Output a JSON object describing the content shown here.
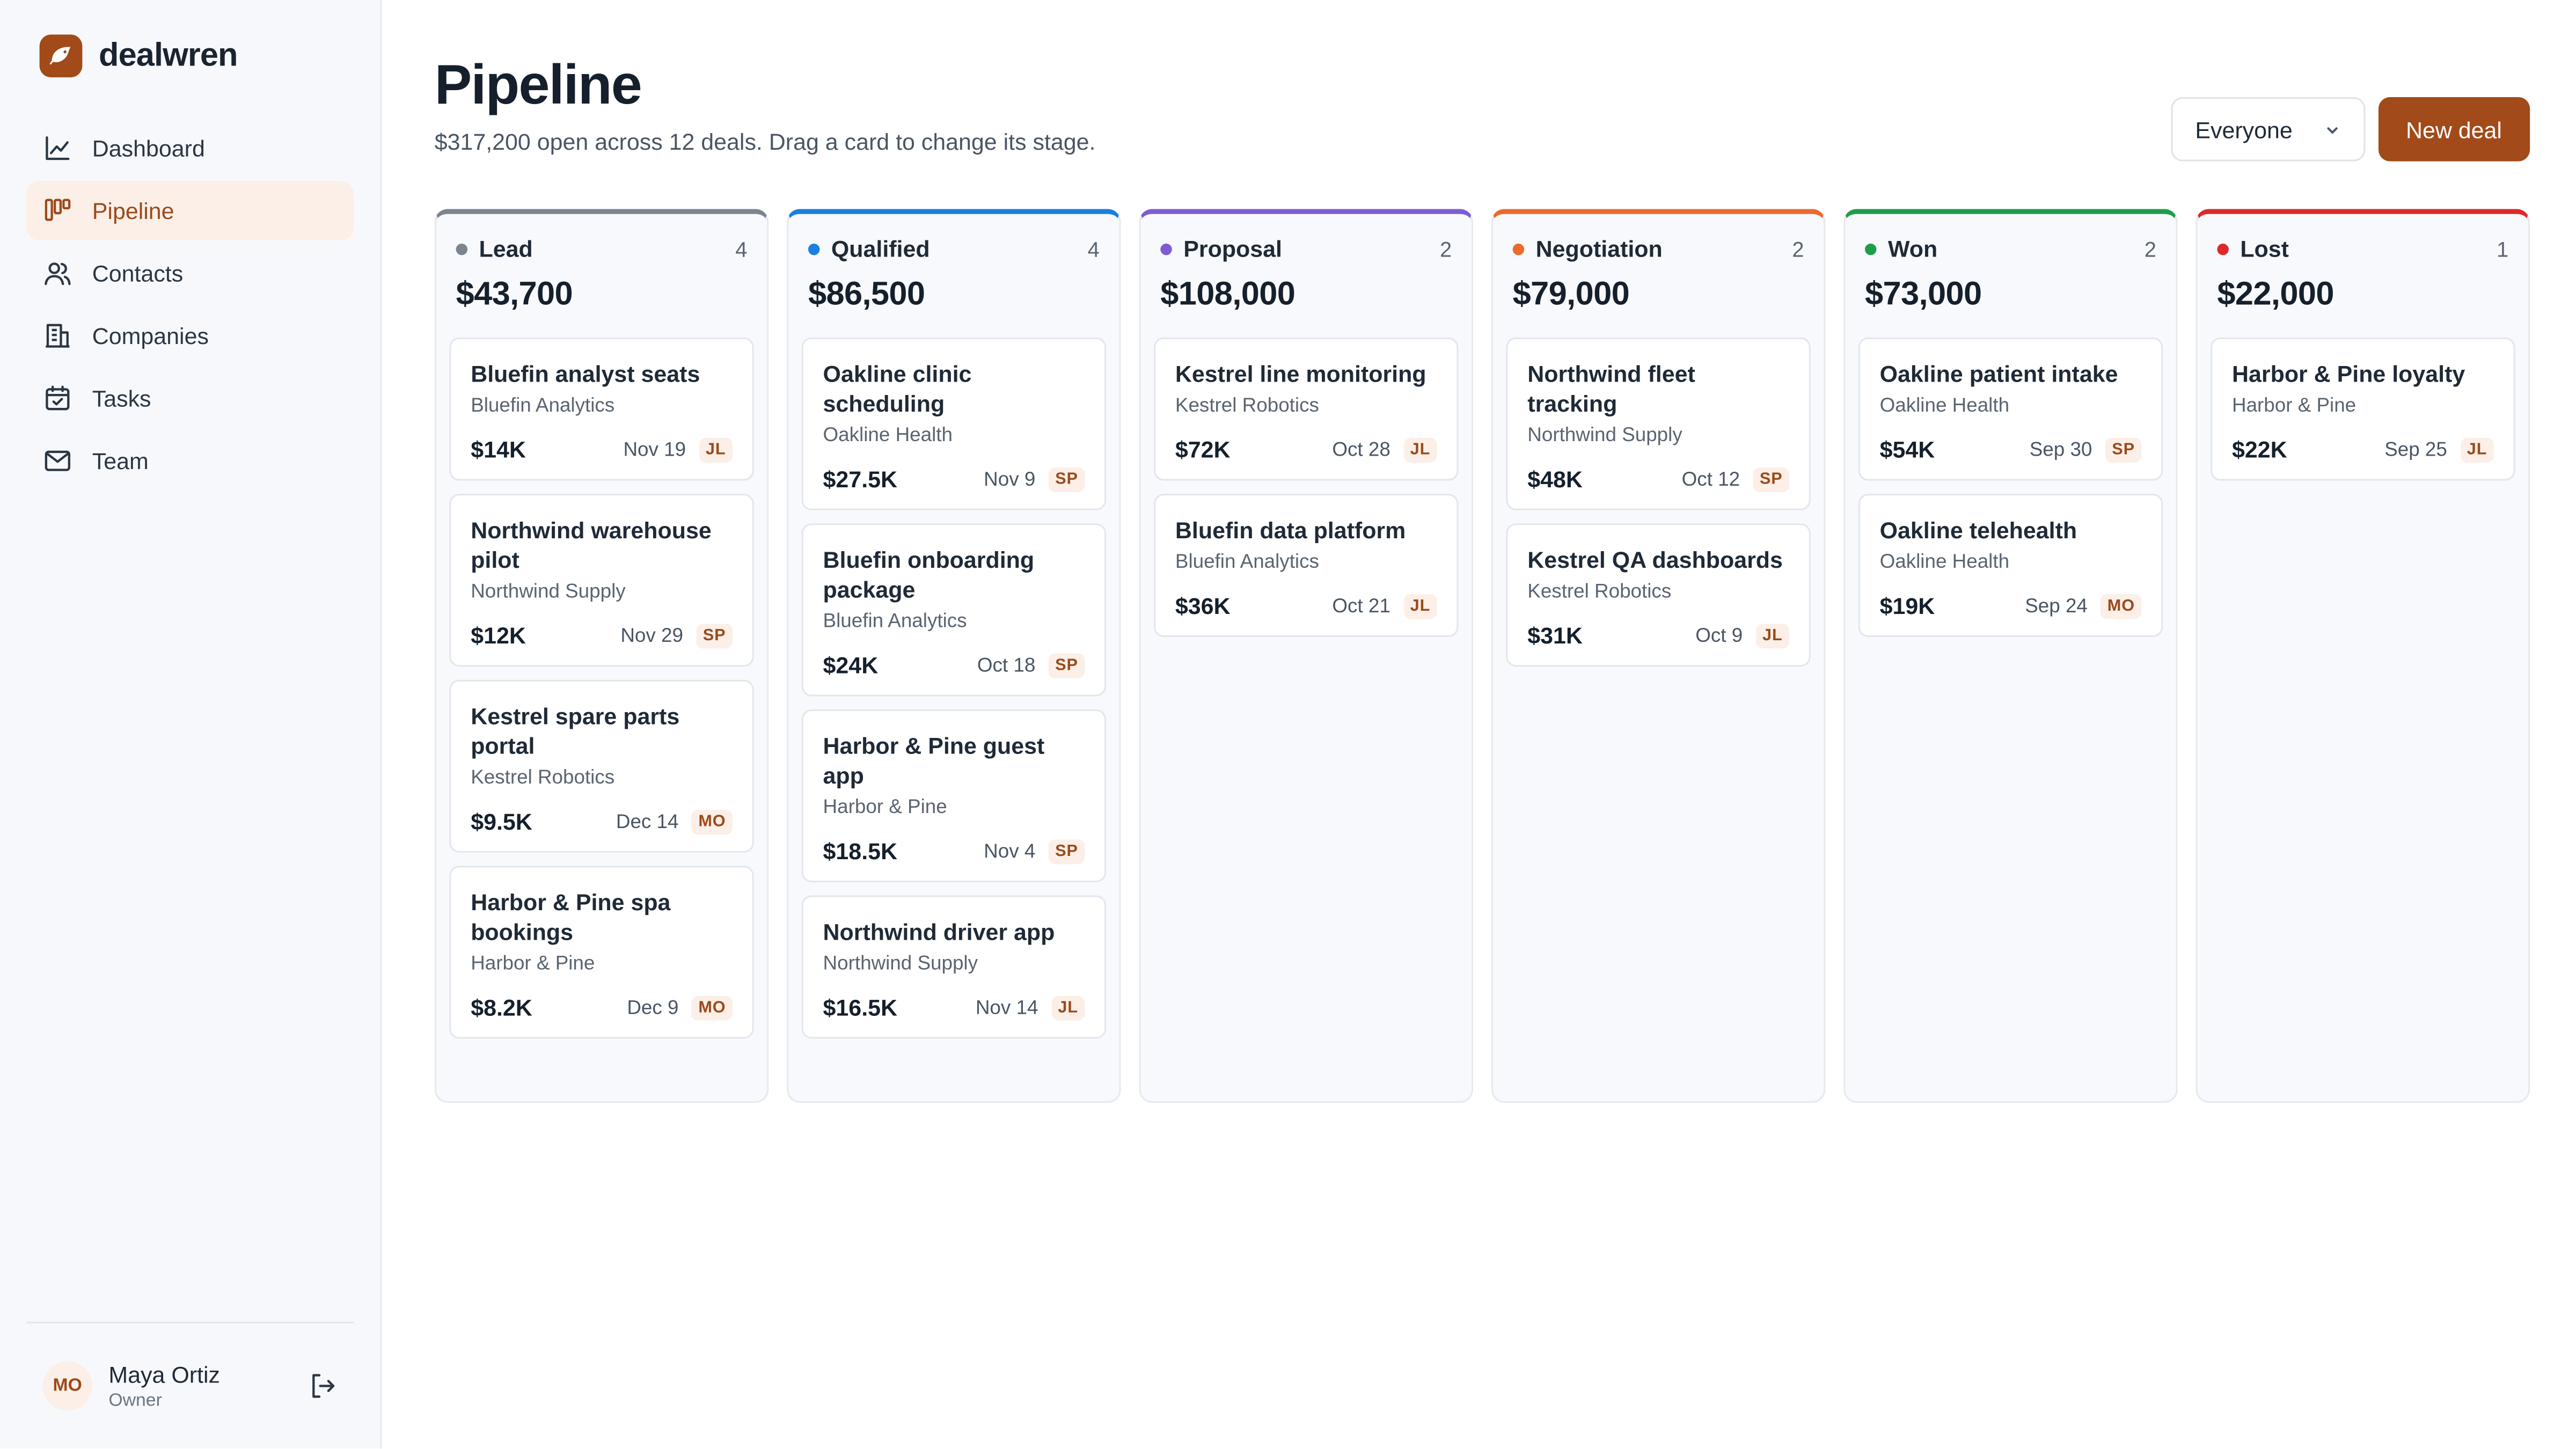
{
  "brand": {
    "name": "dealwren",
    "accent": "#a24a1a"
  },
  "sidebar": {
    "items": [
      {
        "label": "Dashboard",
        "icon": "chart-line-icon",
        "active": false
      },
      {
        "label": "Pipeline",
        "icon": "kanban-icon",
        "active": true
      },
      {
        "label": "Contacts",
        "icon": "users-icon",
        "active": false
      },
      {
        "label": "Companies",
        "icon": "building-icon",
        "active": false
      },
      {
        "label": "Tasks",
        "icon": "calendar-check-icon",
        "active": false
      },
      {
        "label": "Team",
        "icon": "mail-icon",
        "active": false
      }
    ],
    "user": {
      "initials": "MO",
      "name": "Maya Ortiz",
      "role": "Owner"
    }
  },
  "header": {
    "title": "Pipeline",
    "subtitle": "$317,200 open across 12 deals. Drag a card to change its stage.",
    "filter_value": "Everyone",
    "new_deal_label": "New deal"
  },
  "columns": [
    {
      "name": "Lead",
      "count": "4",
      "total": "$43,700",
      "color": "#7a8590",
      "cards": [
        {
          "title": "Bluefin analyst seats",
          "company": "Bluefin Analytics",
          "value": "$14K",
          "date": "Nov 19",
          "owner": "JL"
        },
        {
          "title": "Northwind warehouse pilot",
          "company": "Northwind Supply",
          "value": "$12K",
          "date": "Nov 29",
          "owner": "SP"
        },
        {
          "title": "Kestrel spare parts portal",
          "company": "Kestrel Robotics",
          "value": "$9.5K",
          "date": "Dec 14",
          "owner": "MO"
        },
        {
          "title": "Harbor & Pine spa bookings",
          "company": "Harbor & Pine",
          "value": "$8.2K",
          "date": "Dec 9",
          "owner": "MO"
        }
      ]
    },
    {
      "name": "Qualified",
      "count": "4",
      "total": "$86,500",
      "color": "#1a7fe0",
      "cards": [
        {
          "title": "Oakline clinic scheduling",
          "company": "Oakline Health",
          "value": "$27.5K",
          "date": "Nov 9",
          "owner": "SP"
        },
        {
          "title": "Bluefin onboarding package",
          "company": "Bluefin Analytics",
          "value": "$24K",
          "date": "Oct 18",
          "owner": "SP"
        },
        {
          "title": "Harbor & Pine guest app",
          "company": "Harbor & Pine",
          "value": "$18.5K",
          "date": "Nov 4",
          "owner": "SP"
        },
        {
          "title": "Northwind driver app",
          "company": "Northwind Supply",
          "value": "$16.5K",
          "date": "Nov 14",
          "owner": "JL"
        }
      ]
    },
    {
      "name": "Proposal",
      "count": "2",
      "total": "$108,000",
      "color": "#7d5cd6",
      "cards": [
        {
          "title": "Kestrel line monitoring",
          "company": "Kestrel Robotics",
          "value": "$72K",
          "date": "Oct 28",
          "owner": "JL"
        },
        {
          "title": "Bluefin data platform",
          "company": "Bluefin Analytics",
          "value": "$36K",
          "date": "Oct 21",
          "owner": "JL"
        }
      ]
    },
    {
      "name": "Negotiation",
      "count": "2",
      "total": "$79,000",
      "color": "#ec6a2c",
      "cards": [
        {
          "title": "Northwind fleet tracking",
          "company": "Northwind Supply",
          "value": "$48K",
          "date": "Oct 12",
          "owner": "SP"
        },
        {
          "title": "Kestrel QA dashboards",
          "company": "Kestrel Robotics",
          "value": "$31K",
          "date": "Oct 9",
          "owner": "JL"
        }
      ]
    },
    {
      "name": "Won",
      "count": "2",
      "total": "$73,000",
      "color": "#1f9d4a",
      "cards": [
        {
          "title": "Oakline patient intake",
          "company": "Oakline Health",
          "value": "$54K",
          "date": "Sep 30",
          "owner": "SP"
        },
        {
          "title": "Oakline telehealth",
          "company": "Oakline Health",
          "value": "$19K",
          "date": "Sep 24",
          "owner": "MO"
        }
      ]
    },
    {
      "name": "Lost",
      "count": "1",
      "total": "$22,000",
      "color": "#dc2a2a",
      "cards": [
        {
          "title": "Harbor & Pine loyalty",
          "company": "Harbor & Pine",
          "value": "$22K",
          "date": "Sep 25",
          "owner": "JL"
        }
      ]
    }
  ]
}
